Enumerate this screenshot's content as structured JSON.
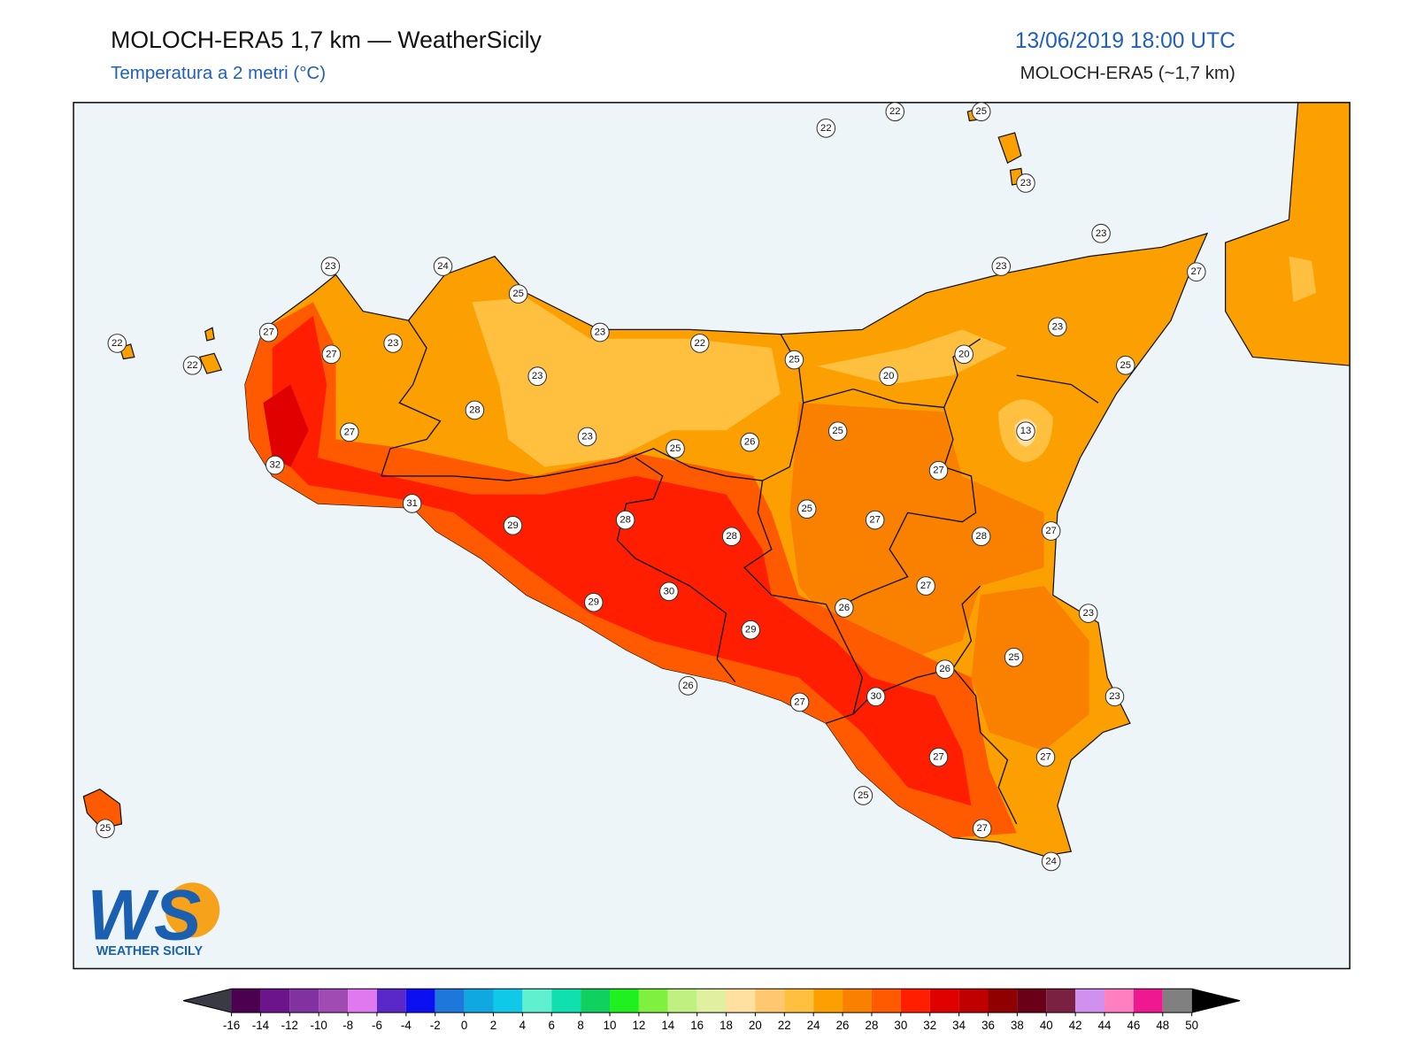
{
  "header": {
    "title": "MOLOCH-ERA5 1,7 km — WeatherSicily",
    "subtitle": "Temperatura a 2 metri (°C)",
    "datetime": "13/06/2019 18:00 UTC",
    "model": "MOLOCH-ERA5 (~1,7 km)"
  },
  "map": {
    "stations": [
      22,
      22,
      25,
      23,
      23,
      24,
      25,
      23,
      23,
      27,
      27,
      23,
      22,
      23,
      22,
      27,
      23,
      25,
      20,
      22,
      23,
      20,
      25,
      28,
      25,
      13,
      27,
      23,
      25,
      26,
      32,
      27,
      31,
      25,
      27,
      29,
      28,
      28,
      28,
      27,
      27,
      30,
      29,
      26,
      23,
      29,
      25,
      26,
      26,
      30,
      23,
      27,
      27,
      27,
      25,
      27,
      25,
      24
    ]
  },
  "colorbar": {
    "ticks": [
      -16,
      -14,
      -12,
      -10,
      -8,
      -6,
      -4,
      -2,
      0,
      2,
      4,
      6,
      8,
      10,
      12,
      14,
      16,
      18,
      20,
      22,
      24,
      26,
      28,
      30,
      32,
      34,
      36,
      38,
      40,
      42,
      44,
      46,
      48,
      50
    ],
    "colors": [
      "#4b0050",
      "#6c148c",
      "#8232a0",
      "#a04bb4",
      "#e078f0",
      "#5a28c8",
      "#0a10f0",
      "#1e78dc",
      "#10a8e0",
      "#10c8e8",
      "#60f0d0",
      "#10e0b0",
      "#10d060",
      "#20f020",
      "#80f040",
      "#c0f080",
      "#e0f0a0",
      "#ffe0a0",
      "#ffc870",
      "#ffc040",
      "#fba000",
      "#fa8000",
      "#ff5a00",
      "#ff1e00",
      "#e00000",
      "#c00000",
      "#900000",
      "#6a0018",
      "#7a2040",
      "#d090f0",
      "#ff80c0",
      "#f01890",
      "#808080"
    ],
    "under": "#3a3a44",
    "over": "#000000"
  },
  "logo": {
    "mark": "WS",
    "name": "WEATHER SICILY"
  }
}
